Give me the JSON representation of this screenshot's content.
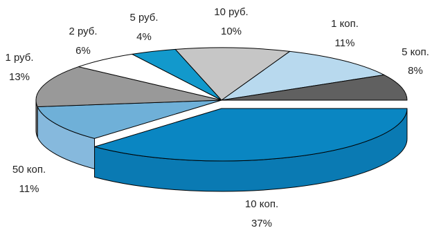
{
  "chart_data": {
    "type": "pie",
    "style": "3d-exploded-slice",
    "title": "",
    "start_slice": "10 коп.",
    "slices": [
      {
        "label": "10 коп.",
        "value": 37,
        "value_label": "37%",
        "color": "#0a86c2",
        "side_color": "#0a7ab3"
      },
      {
        "label": "50 коп.",
        "value": 11,
        "value_label": "11%",
        "color": "#6fb0d8",
        "side_color": "#86b9dd"
      },
      {
        "label": "1 руб.",
        "value": 13,
        "value_label": "13%",
        "color": "#999999",
        "side_color": "#8a8a8a"
      },
      {
        "label": "2 руб.",
        "value": 6,
        "value_label": "6%",
        "color": "#ffffff",
        "side_color": "#ffffff"
      },
      {
        "label": "5 руб.",
        "value": 4,
        "value_label": "4%",
        "color": "#1299cc",
        "side_color": "#1090c0"
      },
      {
        "label": "10 руб.",
        "value": 10,
        "value_label": "10%",
        "color": "#c6c6c6",
        "side_color": "#b5b5b5"
      },
      {
        "label": "1 коп.",
        "value": 11,
        "value_label": "11%",
        "color": "#b8d9ee",
        "side_color": "#a6cce4"
      },
      {
        "label": "5 коп.",
        "value": 8,
        "value_label": "8%",
        "color": "#606060",
        "side_color": "#505050"
      }
    ],
    "outline_color": "#000000"
  }
}
